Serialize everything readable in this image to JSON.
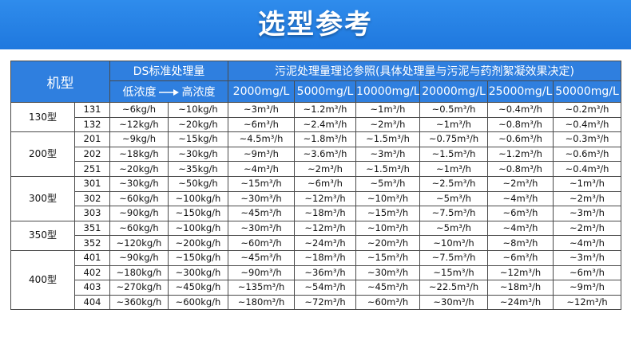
{
  "banner": {
    "title": "选型参考"
  },
  "table": {
    "header": {
      "model": "机型",
      "ds": "DS标准处理量",
      "ds_low": "低浓度",
      "ds_high": "高浓度",
      "sludge": "污泥处理量理论参照(具体处理量与污泥与药剂絮凝效果决定)",
      "concentrations": [
        "2000mg/L",
        "5000mg/L",
        "10000mg/L",
        "20000mg/L",
        "25000mg/L",
        "50000mg/L"
      ]
    },
    "groups": [
      {
        "label": "130型",
        "rows": [
          [
            "131",
            "~6kg/h",
            "~10kg/h",
            "~3m³/h",
            "~1.2m³/h",
            "~1m³/h",
            "~0.5m³/h",
            "~0.4m³/h",
            "~0.2m³/h"
          ],
          [
            "132",
            "~12kg/h",
            "~20kg/h",
            "~6m³/h",
            "~2.4m³/h",
            "~2m³/h",
            "~1m³/h",
            "~0.8m³/h",
            "~0.4m³/h"
          ]
        ]
      },
      {
        "label": "200型",
        "rows": [
          [
            "201",
            "~9kg/h",
            "~15kg/h",
            "~4.5m³/h",
            "~1.8m³/h",
            "~1.5m³/h",
            "~0.75m³/h",
            "~0.6m³/h",
            "~0.3m³/h"
          ],
          [
            "202",
            "~18kg/h",
            "~30kg/h",
            "~9m³/h",
            "~3.6m³/h",
            "~3m³/h",
            "~1.5m³/h",
            "~1.2m³/h",
            "~0.6m³/h"
          ],
          [
            "251",
            "~20kg/h",
            "~35kg/h",
            "~4m³/h",
            "~2m³/h",
            "~1.5m³/h",
            "~1m³/h",
            "~0.8m³/h",
            "~0.4m³/h"
          ]
        ]
      },
      {
        "label": "300型",
        "rows": [
          [
            "301",
            "~30kg/h",
            "~50kg/h",
            "~15m³/h",
            "~6m³/h",
            "~5m³/h",
            "~2.5m³/h",
            "~2m³/h",
            "~1m³/h"
          ],
          [
            "302",
            "~60kg/h",
            "~100kg/h",
            "~30m³/h",
            "~12m³/h",
            "~10m³/h",
            "~5m³/h",
            "~4m³/h",
            "~2m³/h"
          ],
          [
            "303",
            "~90kg/h",
            "~150kg/h",
            "~45m³/h",
            "~18m³/h",
            "~15m³/h",
            "~7.5m³/h",
            "~6m³/h",
            "~3m³/h"
          ]
        ]
      },
      {
        "label": "350型",
        "rows": [
          [
            "351",
            "~60kg/h",
            "~100kg/h",
            "~30m³/h",
            "~12m³/h",
            "~10m³/h",
            "~5m³/h",
            "~4m³/h",
            "~2m³/h"
          ],
          [
            "352",
            "~120kg/h",
            "~200kg/h",
            "~60m³/h",
            "~24m³/h",
            "~20m³/h",
            "~10m³/h",
            "~8m³/h",
            "~4m³/h"
          ]
        ]
      },
      {
        "label": "400型",
        "rows": [
          [
            "401",
            "~90kg/h",
            "~150kg/h",
            "~45m³/h",
            "~18m³/h",
            "~15m³/h",
            "~7.5m³/h",
            "~6m³/h",
            "~3m³/h"
          ],
          [
            "402",
            "~180kg/h",
            "~300kg/h",
            "~90m³/h",
            "~36m³/h",
            "~30m³/h",
            "~15m³/h",
            "~12m³/h",
            "~6m³/h"
          ],
          [
            "403",
            "~270kg/h",
            "~450kg/h",
            "~135m³/h",
            "~54m³/h",
            "~45m³/h",
            "~22.5m³/h",
            "~18m³/h",
            "~9m³/h"
          ],
          [
            "404",
            "~360kg/h",
            "~600kg/h",
            "~180m³/h",
            "~72m³/h",
            "~60m³/h",
            "~30m³/h",
            "~24m³/h",
            "~12m³/h"
          ]
        ]
      }
    ]
  }
}
